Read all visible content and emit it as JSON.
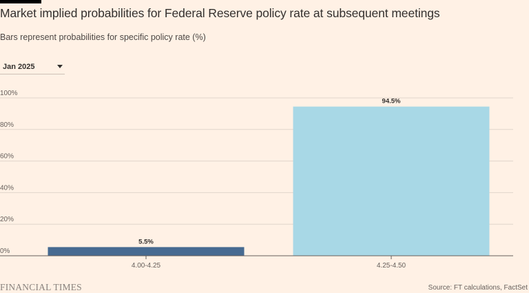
{
  "header": {
    "title": "Market implied probabilities for Federal Reserve policy rate at subsequent meetings",
    "subtitle": "Bars represent probabilities for specific policy rate (%)"
  },
  "selector": {
    "value": "Jan 2025",
    "caret_icon": "chevron-down-icon"
  },
  "footer": {
    "brand": "FINANCIAL TIMES",
    "source": "Source: FT calculations, FactSet"
  },
  "colors": {
    "background": "#FFF1E5",
    "grid": "#E0D5CB",
    "axis": "#66605C",
    "bar_primary": "#466A91",
    "bar_secondary": "#A8D8E6"
  },
  "chart_data": {
    "type": "bar",
    "title": "Market implied probabilities for Federal Reserve policy rate at subsequent meetings",
    "subtitle": "Bars represent probabilities for specific policy rate (%)",
    "categories": [
      "4.00-4.25",
      "4.25-4.50"
    ],
    "values": [
      5.5,
      94.5
    ],
    "value_labels": [
      "5.5%",
      "94.5%"
    ],
    "ylim": [
      0,
      100
    ],
    "yticks": [
      0,
      20,
      40,
      60,
      80,
      100
    ],
    "ytick_labels": [
      "0%",
      "20%",
      "40%",
      "60%",
      "80%",
      "100%"
    ],
    "xlabel": "",
    "ylabel": "",
    "grid": true,
    "legend": "none"
  }
}
